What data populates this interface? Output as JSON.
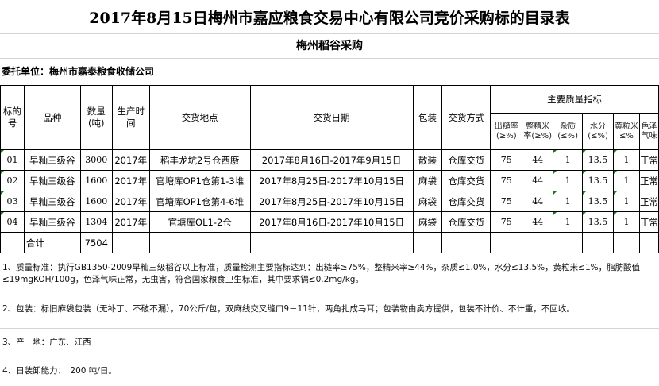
{
  "title": "2017年8月15日梅州市嘉应粮食交易中心有限公司竞价采购标的目录表",
  "subtitle": "梅州稻谷采购",
  "entrust": "委托单位：梅州市嘉泰粮食收储公司",
  "headers": {
    "no": "标的号",
    "variety": "品种",
    "qty": "数量(吨)",
    "year": "生产时间",
    "place": "交货地点",
    "date": "交货日期",
    "pack": "包装",
    "mode": "交货方式",
    "quality": "主要质量指标",
    "q1": "出糙率(≥%)",
    "q2": "整精米率(≥%)",
    "q3": "杂质(≤%)",
    "q4": "水分(≤%)",
    "q5": "黄粒米≤%",
    "q6": "色泽气味"
  },
  "rows": [
    {
      "no": "01",
      "variety": "早籼三级谷",
      "qty": "3000",
      "year": "2017年",
      "place": "稻丰龙坑2号仓西廒",
      "date": "2017年8月16日-2017年9月15日",
      "pack": "散装",
      "mode": "仓库交货",
      "q1": "75",
      "q2": "44",
      "q3": "1",
      "q4": "13.5",
      "q5": "1",
      "q6": "正常"
    },
    {
      "no": "02",
      "variety": "早籼三级谷",
      "qty": "1600",
      "year": "2017年",
      "place": "官塘库OP1仓第1-3堆",
      "date": "2017年8月25日-2017年10月15日",
      "pack": "麻袋",
      "mode": "仓库交货",
      "q1": "75",
      "q2": "44",
      "q3": "1",
      "q4": "13.5",
      "q5": "1",
      "q6": "正常"
    },
    {
      "no": "03",
      "variety": "早籼三级谷",
      "qty": "1600",
      "year": "2017年",
      "place": "官塘库OP1仓第4-6堆",
      "date": "2017年8月25日-2017年10月15日",
      "pack": "麻袋",
      "mode": "仓库交货",
      "q1": "75",
      "q2": "44",
      "q3": "1",
      "q4": "13.5",
      "q5": "1",
      "q6": "正常"
    },
    {
      "no": "04",
      "variety": "早籼三级谷",
      "qty": "1304",
      "year": "2017年",
      "place": "官塘库OL1-2仓",
      "date": "2017年8月16日-2017年10月15日",
      "pack": "麻袋",
      "mode": "仓库交货",
      "q1": "75",
      "q2": "44",
      "q3": "1",
      "q4": "13.5",
      "q5": "1",
      "q6": "正常"
    }
  ],
  "total": {
    "label": "合计",
    "qty": "7504"
  },
  "notes": [
    "1、质量标准：执行GB1350-2009早籼三级稻谷以上标准，质量检测主要指标达到：出糙率≥75%，整精米率≥44%，杂质≤1.0%，水分≤13.5%，黄粒米≤1%，脂肪酸值≤19mgKOH/100g，色泽气味正常，无虫害，符合国家粮食卫生标准，其中要求镉≤0.2mg/kg。",
    "2、包装：标旧麻袋包装（无补丁、不破不漏），70公斤/包，双麻线交叉缝口9－11针，两角扎成马耳；包装物由卖方提供，包装不计价、不计重，不回收。",
    "3、产　地：广东、江西",
    "4、日装卸能力：　200 吨/日。"
  ]
}
